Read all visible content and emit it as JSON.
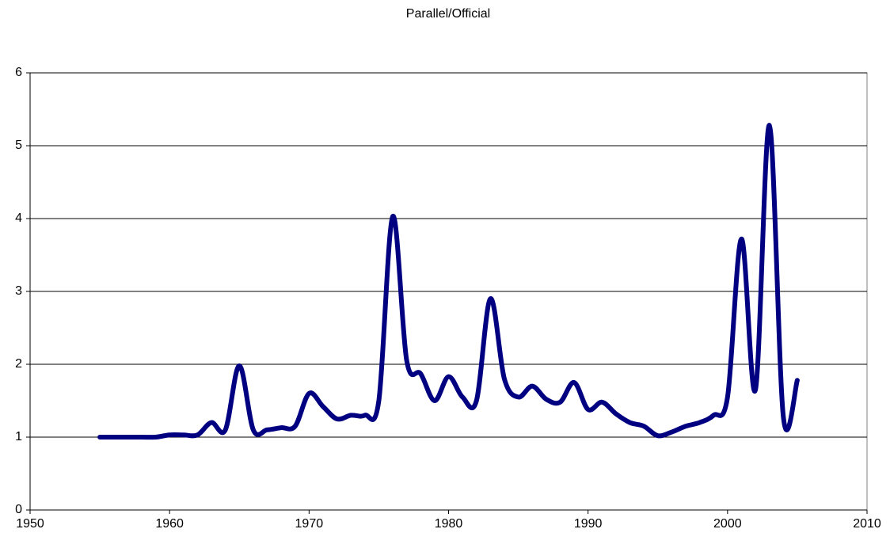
{
  "chart_data": {
    "type": "line",
    "title": "Parallel/Official",
    "x": [
      1955,
      1956,
      1957,
      1958,
      1959,
      1960,
      1961,
      1962,
      1963,
      1964,
      1965,
      1966,
      1967,
      1968,
      1969,
      1970,
      1971,
      1972,
      1973,
      1974,
      1975,
      1976,
      1977,
      1978,
      1979,
      1980,
      1981,
      1982,
      1983,
      1984,
      1985,
      1986,
      1987,
      1988,
      1989,
      1990,
      1991,
      1992,
      1993,
      1994,
      1995,
      1996,
      1997,
      1998,
      1999,
      2000,
      2001,
      2002,
      2003,
      2004,
      2005
    ],
    "values": [
      1.0,
      1.0,
      1.0,
      1.0,
      1.0,
      1.03,
      1.03,
      1.03,
      1.2,
      1.1,
      1.98,
      1.1,
      1.1,
      1.13,
      1.15,
      1.6,
      1.42,
      1.25,
      1.3,
      1.3,
      1.5,
      4.03,
      2.05,
      1.87,
      1.5,
      1.83,
      1.55,
      1.5,
      2.9,
      1.8,
      1.55,
      1.7,
      1.52,
      1.48,
      1.75,
      1.38,
      1.48,
      1.32,
      1.2,
      1.15,
      1.02,
      1.07,
      1.15,
      1.2,
      1.3,
      1.55,
      3.72,
      1.65,
      5.28,
      1.28,
      1.78
    ],
    "color": "#000080",
    "xlim": [
      1950,
      2010
    ],
    "xticks": [
      1950,
      1960,
      1970,
      1980,
      1990,
      2000,
      2010
    ],
    "ylim": [
      0,
      6
    ],
    "yticks": [
      0,
      1,
      2,
      3,
      4,
      5,
      6
    ],
    "grid": true
  }
}
